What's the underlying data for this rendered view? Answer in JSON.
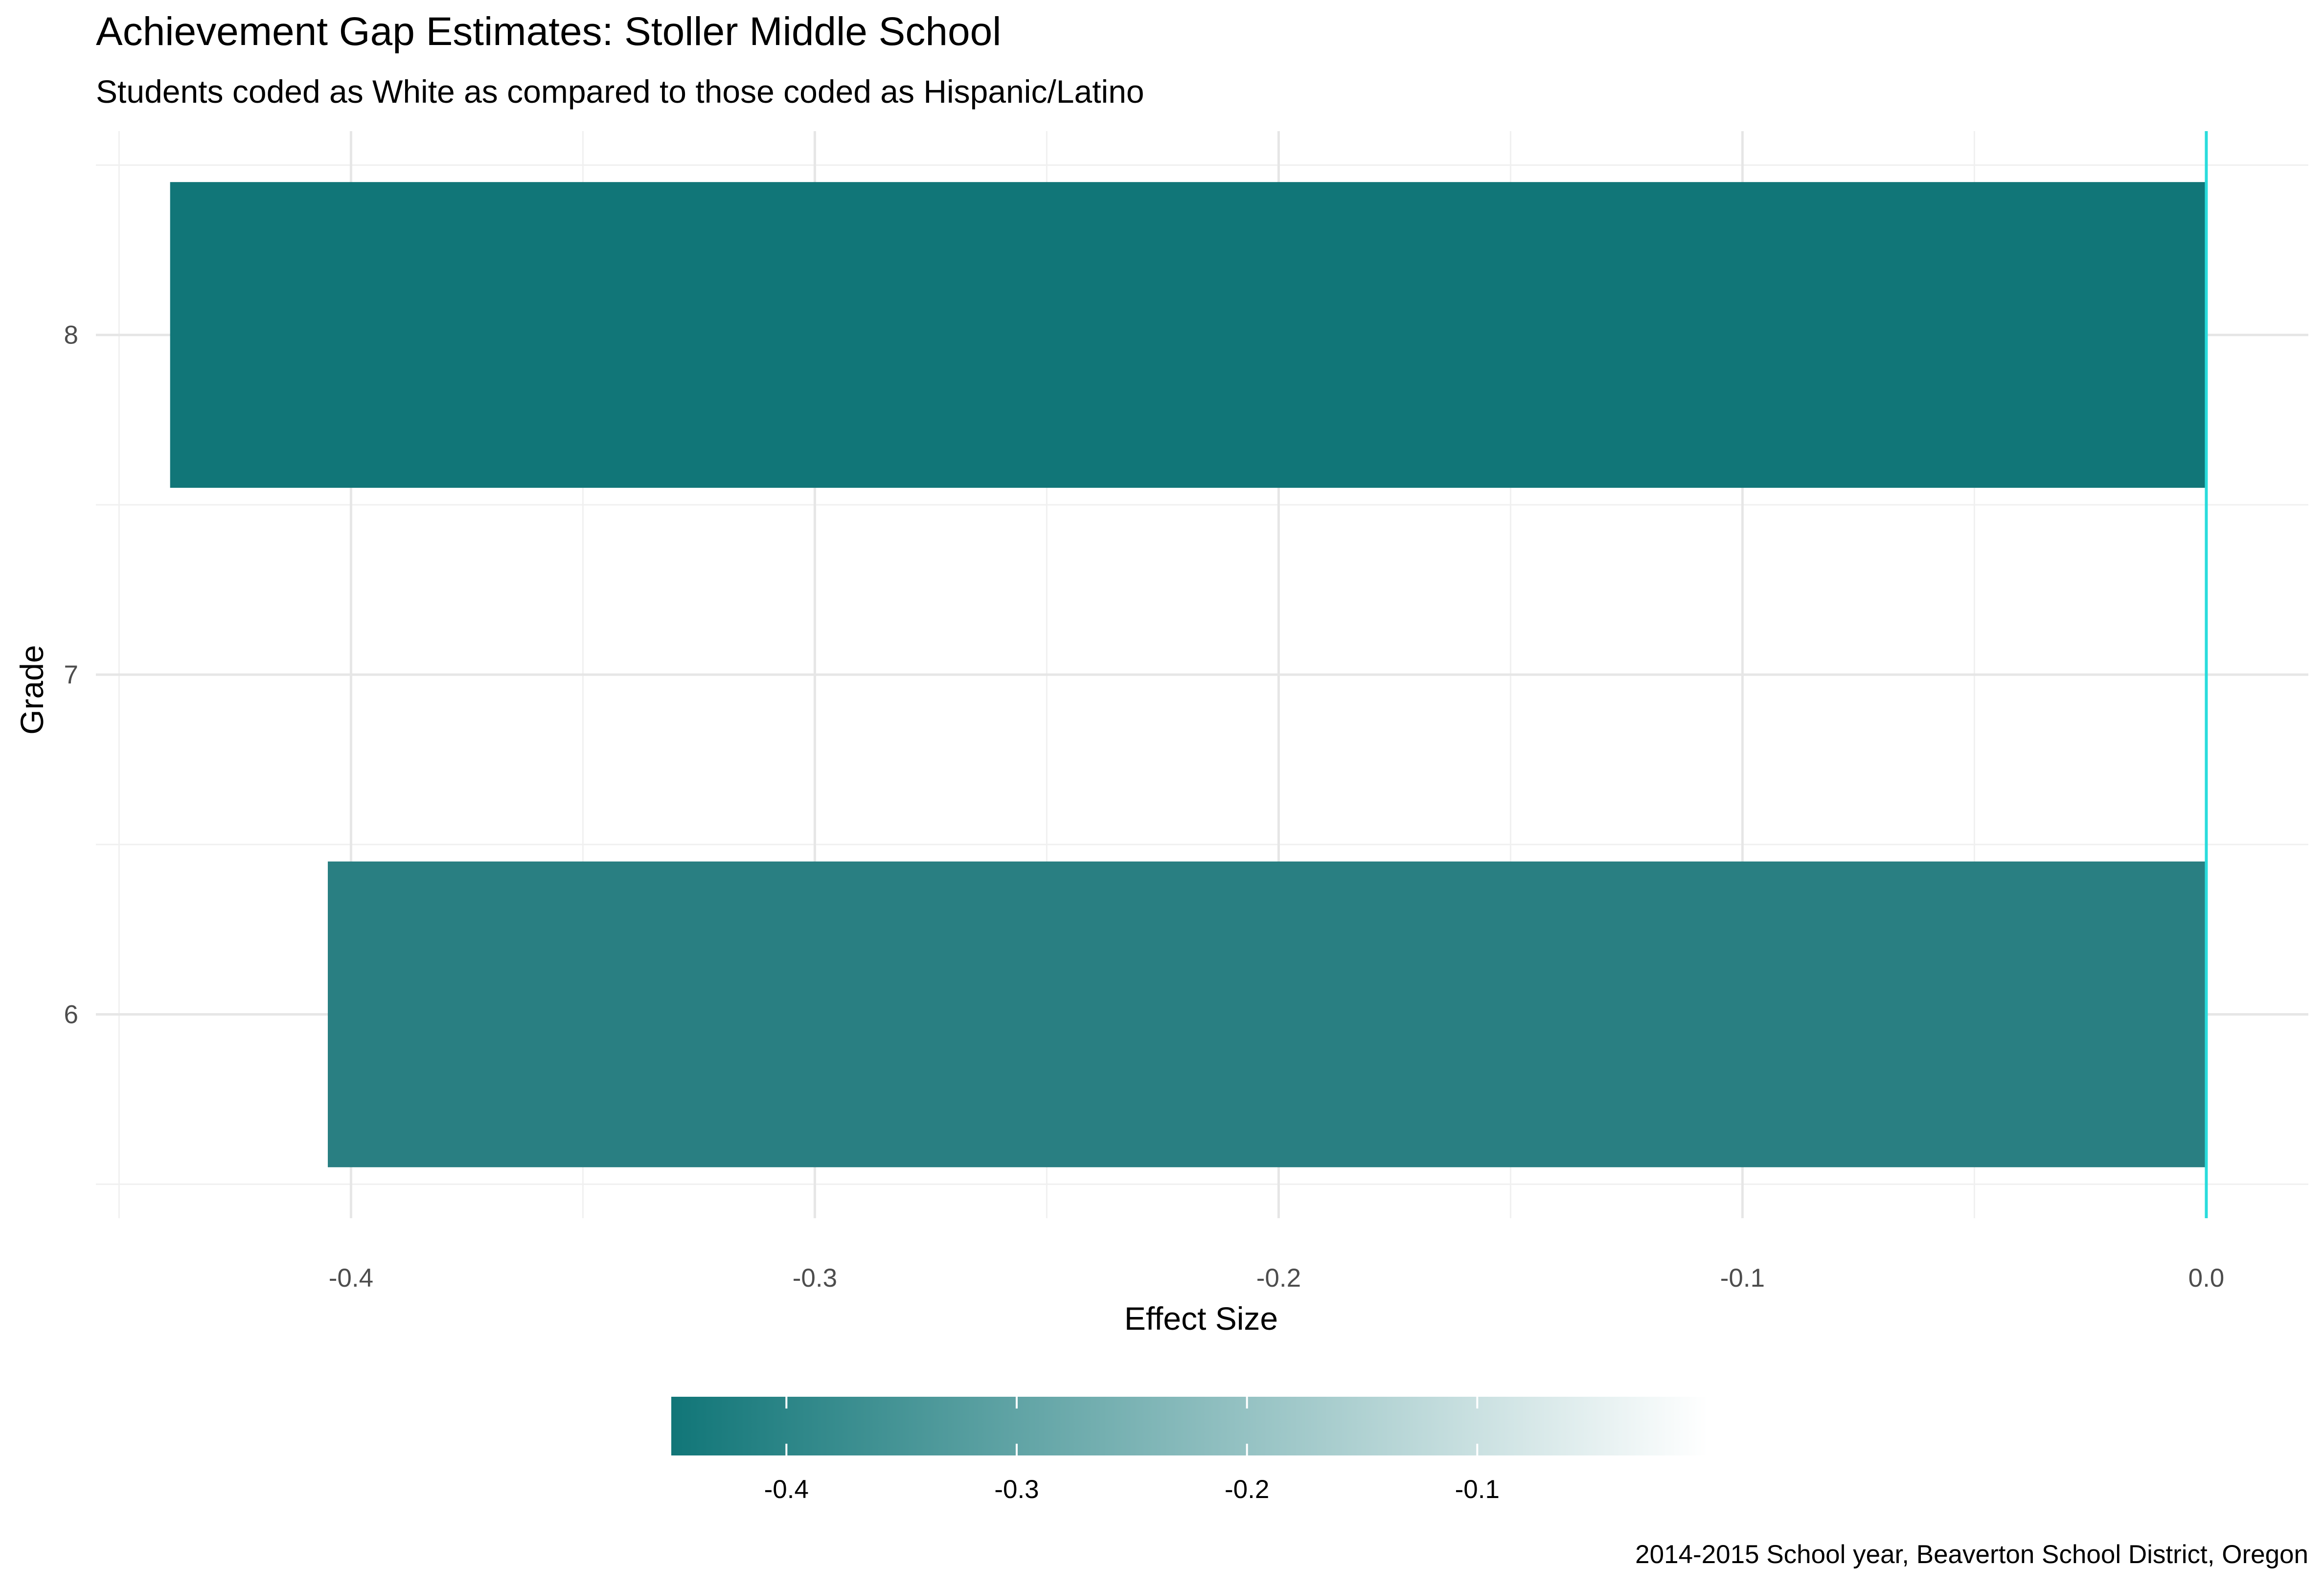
{
  "chart_data": {
    "type": "bar",
    "orientation": "horizontal",
    "title": "Achievement Gap Estimates: Stoller Middle School",
    "subtitle": "Students coded as White as compared to those coded as Hispanic/Latino",
    "caption": "2014-2015 School year, Beaverton School District, Oregon",
    "xlabel": "Effect Size",
    "ylabel": "Grade",
    "categories": [
      "6",
      "7",
      "8"
    ],
    "values": [
      -0.405,
      null,
      -0.439
    ],
    "bar_colors": [
      "#297f82",
      null,
      "#117678"
    ],
    "xlim": [
      -0.455,
      0.022
    ],
    "x_ticks": [
      -0.4,
      -0.3,
      -0.2,
      -0.1,
      0.0
    ],
    "x_tick_labels": [
      "-0.4",
      "-0.3",
      "-0.2",
      "-0.1",
      "0.0"
    ],
    "y_tick_labels": [
      "6",
      "7",
      "8"
    ],
    "reference_line": {
      "x": 0.0,
      "color": "#29dcdc"
    },
    "grid": true,
    "legend": {
      "type": "colorbar",
      "position": "bottom",
      "range": [
        -0.45,
        0.0
      ],
      "low_color": "#117678",
      "high_color": "#ffffff",
      "ticks": [
        -0.4,
        -0.3,
        -0.2,
        -0.1
      ],
      "tick_labels": [
        "-0.4",
        "-0.3",
        "-0.2",
        "-0.1"
      ]
    }
  }
}
